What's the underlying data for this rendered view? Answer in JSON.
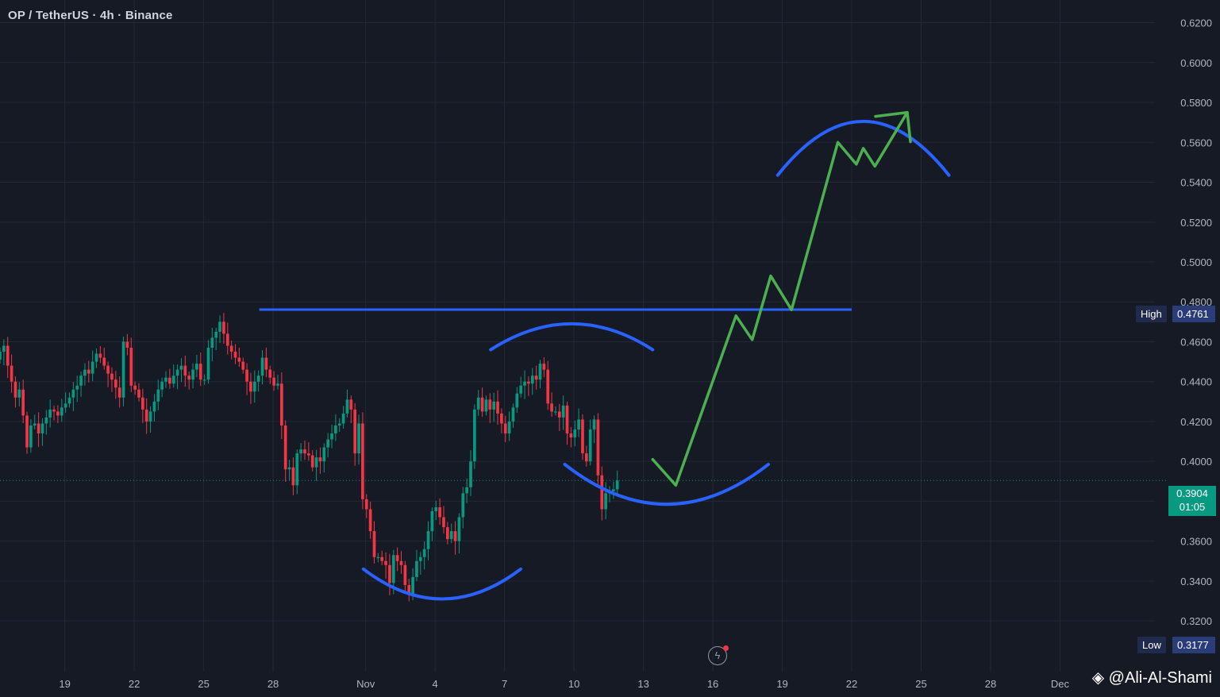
{
  "header": {
    "symbol_title": "OP / TetherUS · 4h · Binance"
  },
  "colors": {
    "background": "#161a25",
    "grid": "#242837",
    "up_candle": "#089981",
    "down_candle": "#f23645",
    "annotation_blue": "#2962ff",
    "annotation_green": "#4caf50",
    "axis_text": "#b2b5be"
  },
  "price_tag": {
    "price": "0.3904",
    "countdown": "01:05"
  },
  "high_marker": {
    "label": "High",
    "value": "0.4761"
  },
  "low_marker": {
    "label": "Low",
    "value": "0.3177"
  },
  "watermark": {
    "text": "@Ali-Al-Shami",
    "logo": "binance-diamond-logo"
  },
  "toolbar": {
    "replay_icon": "lightning-replay-icon"
  },
  "chart_data": {
    "type": "candlestick",
    "title": "OP / TetherUS · 4h · Binance",
    "xlabel": "",
    "ylabel": "",
    "ylim": [
      0.3105,
      0.625
    ],
    "grid": true,
    "y_ticks": [
      "0.6200",
      "0.6000",
      "0.5800",
      "0.5600",
      "0.5400",
      "0.5200",
      "0.5000",
      "0.4800",
      "0.4600",
      "0.4400",
      "0.4200",
      "0.4000",
      "0.3800",
      "0.3600",
      "0.3400",
      "0.3200"
    ],
    "x_ticks": [
      {
        "label": "19",
        "day": 19
      },
      {
        "label": "22",
        "day": 22
      },
      {
        "label": "25",
        "day": 25
      },
      {
        "label": "28",
        "day": 28
      },
      {
        "label": "Nov",
        "day": 32
      },
      {
        "label": "4",
        "day": 35
      },
      {
        "label": "7",
        "day": 38
      },
      {
        "label": "10",
        "day": 41
      },
      {
        "label": "13",
        "day": 44
      },
      {
        "label": "16",
        "day": 47
      },
      {
        "label": "19",
        "day": 50
      },
      {
        "label": "22",
        "day": 53
      },
      {
        "label": "25",
        "day": 56
      },
      {
        "label": "28",
        "day": 59
      },
      {
        "label": "Dec",
        "day": 62
      }
    ],
    "x_range_days": [
      16.2,
      66.1
    ],
    "candles_start_day": 16.2,
    "candle_interval_days": 0.1667,
    "closes": [
      0.455,
      0.458,
      0.448,
      0.44,
      0.432,
      0.436,
      0.423,
      0.407,
      0.418,
      0.419,
      0.414,
      0.419,
      0.422,
      0.426,
      0.425,
      0.423,
      0.427,
      0.429,
      0.432,
      0.436,
      0.438,
      0.443,
      0.446,
      0.444,
      0.45,
      0.454,
      0.452,
      0.448,
      0.444,
      0.441,
      0.437,
      0.432,
      0.46,
      0.457,
      0.438,
      0.436,
      0.432,
      0.426,
      0.42,
      0.425,
      0.43,
      0.436,
      0.44,
      0.442,
      0.439,
      0.443,
      0.446,
      0.448,
      0.443,
      0.441,
      0.446,
      0.449,
      0.441,
      0.441,
      0.457,
      0.462,
      0.465,
      0.47,
      0.464,
      0.458,
      0.455,
      0.452,
      0.45,
      0.446,
      0.44,
      0.435,
      0.44,
      0.443,
      0.452,
      0.446,
      0.442,
      0.438,
      0.439,
      0.418,
      0.396,
      0.397,
      0.388,
      0.404,
      0.406,
      0.404,
      0.403,
      0.397,
      0.402,
      0.4,
      0.407,
      0.411,
      0.414,
      0.418,
      0.419,
      0.424,
      0.431,
      0.426,
      0.404,
      0.419,
      0.381,
      0.376,
      0.365,
      0.352,
      0.352,
      0.35,
      0.348,
      0.339,
      0.353,
      0.35,
      0.348,
      0.338,
      0.333,
      0.342,
      0.35,
      0.352,
      0.356,
      0.365,
      0.375,
      0.377,
      0.372,
      0.367,
      0.361,
      0.365,
      0.36,
      0.372,
      0.384,
      0.387,
      0.4,
      0.426,
      0.432,
      0.425,
      0.431,
      0.426,
      0.43,
      0.424,
      0.419,
      0.414,
      0.42,
      0.427,
      0.434,
      0.438,
      0.44,
      0.439,
      0.443,
      0.441,
      0.449,
      0.446,
      0.429,
      0.425,
      0.425,
      0.422,
      0.428,
      0.414,
      0.412,
      0.416,
      0.421,
      0.404,
      0.4,
      0.416,
      0.421,
      0.393,
      0.376,
      0.384,
      0.385,
      0.386,
      0.3904
    ],
    "annotations": {
      "resistance_line": {
        "from": [
          27.4,
          0.4761
        ],
        "to": [
          53.0,
          0.4761
        ]
      },
      "green_path": [
        [
          44.4,
          0.401
        ],
        [
          45.4,
          0.388
        ],
        [
          48.0,
          0.473
        ],
        [
          48.7,
          0.461
        ],
        [
          49.5,
          0.493
        ],
        [
          50.4,
          0.476
        ],
        [
          52.4,
          0.56
        ],
        [
          53.2,
          0.549
        ],
        [
          53.5,
          0.557
        ],
        [
          54.0,
          0.548
        ],
        [
          55.4,
          0.575
        ]
      ],
      "green_arrowhead": [
        55.4,
        0.575
      ],
      "arcs": [
        {
          "type": "cup",
          "center_day": 35.3,
          "low": 0.331,
          "half_width_days": 3.4,
          "rise": 0.015
        },
        {
          "type": "cap",
          "center_day": 40.9,
          "high": 0.469,
          "half_width_days": 3.5,
          "drop": 0.013
        },
        {
          "type": "cup",
          "center_day": 45.0,
          "low": 0.3785,
          "half_width_days": 4.4,
          "rise": 0.02
        },
        {
          "type": "cap",
          "center_day": 53.5,
          "high": 0.5705,
          "half_width_days": 3.7,
          "drop": 0.027
        }
      ]
    }
  }
}
